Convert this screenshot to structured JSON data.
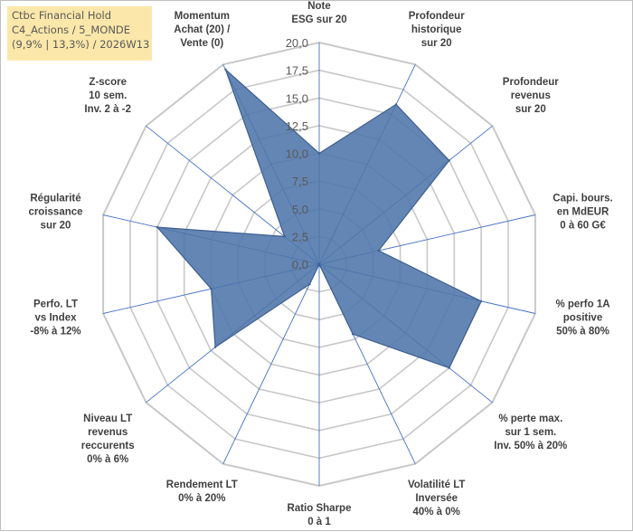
{
  "title_box": {
    "line1": "Ctbc Financial Hold",
    "line2": "C4_Actions / 5_MONDE",
    "line3": "(9,9% | 13,3%) / 2026W13"
  },
  "chart_data": {
    "type": "radar",
    "title": "Ctbc Financial Hold",
    "r_min": 0,
    "r_max": 20,
    "r_ticks": [
      "0,0",
      "2,5",
      "5,0",
      "7,5",
      "10,0",
      "12,5",
      "15,0",
      "17,5",
      "20,0"
    ],
    "axes": [
      {
        "label": [
          "Note",
          "ESG sur 20"
        ],
        "value": 10
      },
      {
        "label": [
          "Profondeur",
          "historique",
          "sur 20"
        ],
        "value": 16
      },
      {
        "label": [
          "Profondeur",
          "revenus",
          "sur 20"
        ],
        "value": 15
      },
      {
        "label": [
          "Capi. bours.",
          "en MdEUR",
          "0 à 60 G€"
        ],
        "value": 5.5
      },
      {
        "label": [
          "% perfo 1A",
          "positive",
          "50% à 80%"
        ],
        "value": 15
      },
      {
        "label": [
          "% perte max.",
          "sur 1 sem.",
          "Inv. 50% à 20%"
        ],
        "value": 15
      },
      {
        "label": [
          "Volatilité LT",
          "Inversée",
          "40% à 0%"
        ],
        "value": 7
      },
      {
        "label": [
          "Ratio Sharpe",
          "0 à 1"
        ],
        "value": 0
      },
      {
        "label": [
          "Rendement LT",
          "0% à 20%"
        ],
        "value": 2
      },
      {
        "label": [
          "Niveau LT",
          "revenus",
          "reccurents",
          "0% à 6%"
        ],
        "value": 12
      },
      {
        "label": [
          "Perfo. LT",
          "vs Index",
          "-8% à 12%"
        ],
        "value": 10
      },
      {
        "label": [
          "Régularité",
          "croissance",
          "sur 20"
        ],
        "value": 15
      },
      {
        "label": [
          "Z-score",
          "10 sem.",
          "Inv. 2 à -2"
        ],
        "value": 4
      },
      {
        "label": [
          "Momentum",
          "Achat (20) /",
          "Vente (0)"
        ],
        "value": 19.5
      }
    ],
    "series": [
      {
        "name": "Ctbc Financial Hold",
        "color": "#4f75aa"
      }
    ],
    "grid_color": "#c8c8c8",
    "spoke_color": "#4472c4"
  }
}
